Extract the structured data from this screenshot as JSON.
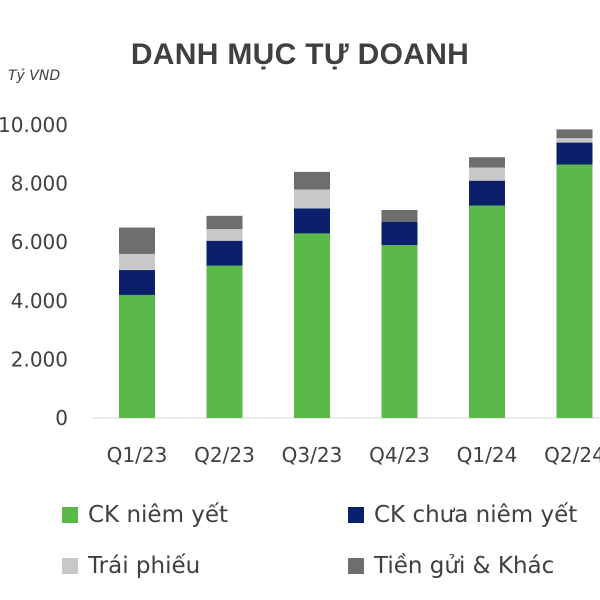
{
  "chart_data": {
    "type": "bar",
    "stacked": true,
    "title": "DANH MỤC TỰ DOANH",
    "unit_label": "Tỷ VND",
    "categories": [
      "Q1/23",
      "Q2/23",
      "Q3/23",
      "Q4/23",
      "Q1/24",
      "Q2/24"
    ],
    "y_ticks": [
      "0",
      "2.000",
      "4.000",
      "6.000",
      "8.000",
      "10.000"
    ],
    "ylim": [
      0,
      10000
    ],
    "grid": false,
    "legend_position": "bottom",
    "series": [
      {
        "name": "CK niêm yết",
        "color": "#5BB94A",
        "values": [
          4200,
          5200,
          6300,
          5900,
          7250,
          8650
        ]
      },
      {
        "name": "CK chưa niêm yết",
        "color": "#0B1F6B",
        "values": [
          850,
          850,
          850,
          800,
          850,
          750
        ]
      },
      {
        "name": "Trái phiếu",
        "color": "#C8C8C8",
        "values": [
          550,
          400,
          650,
          0,
          450,
          150
        ]
      },
      {
        "name": "Tiền gửi & Khác",
        "color": "#6E6E6E",
        "values": [
          900,
          450,
          600,
          400,
          350,
          300
        ]
      }
    ]
  }
}
